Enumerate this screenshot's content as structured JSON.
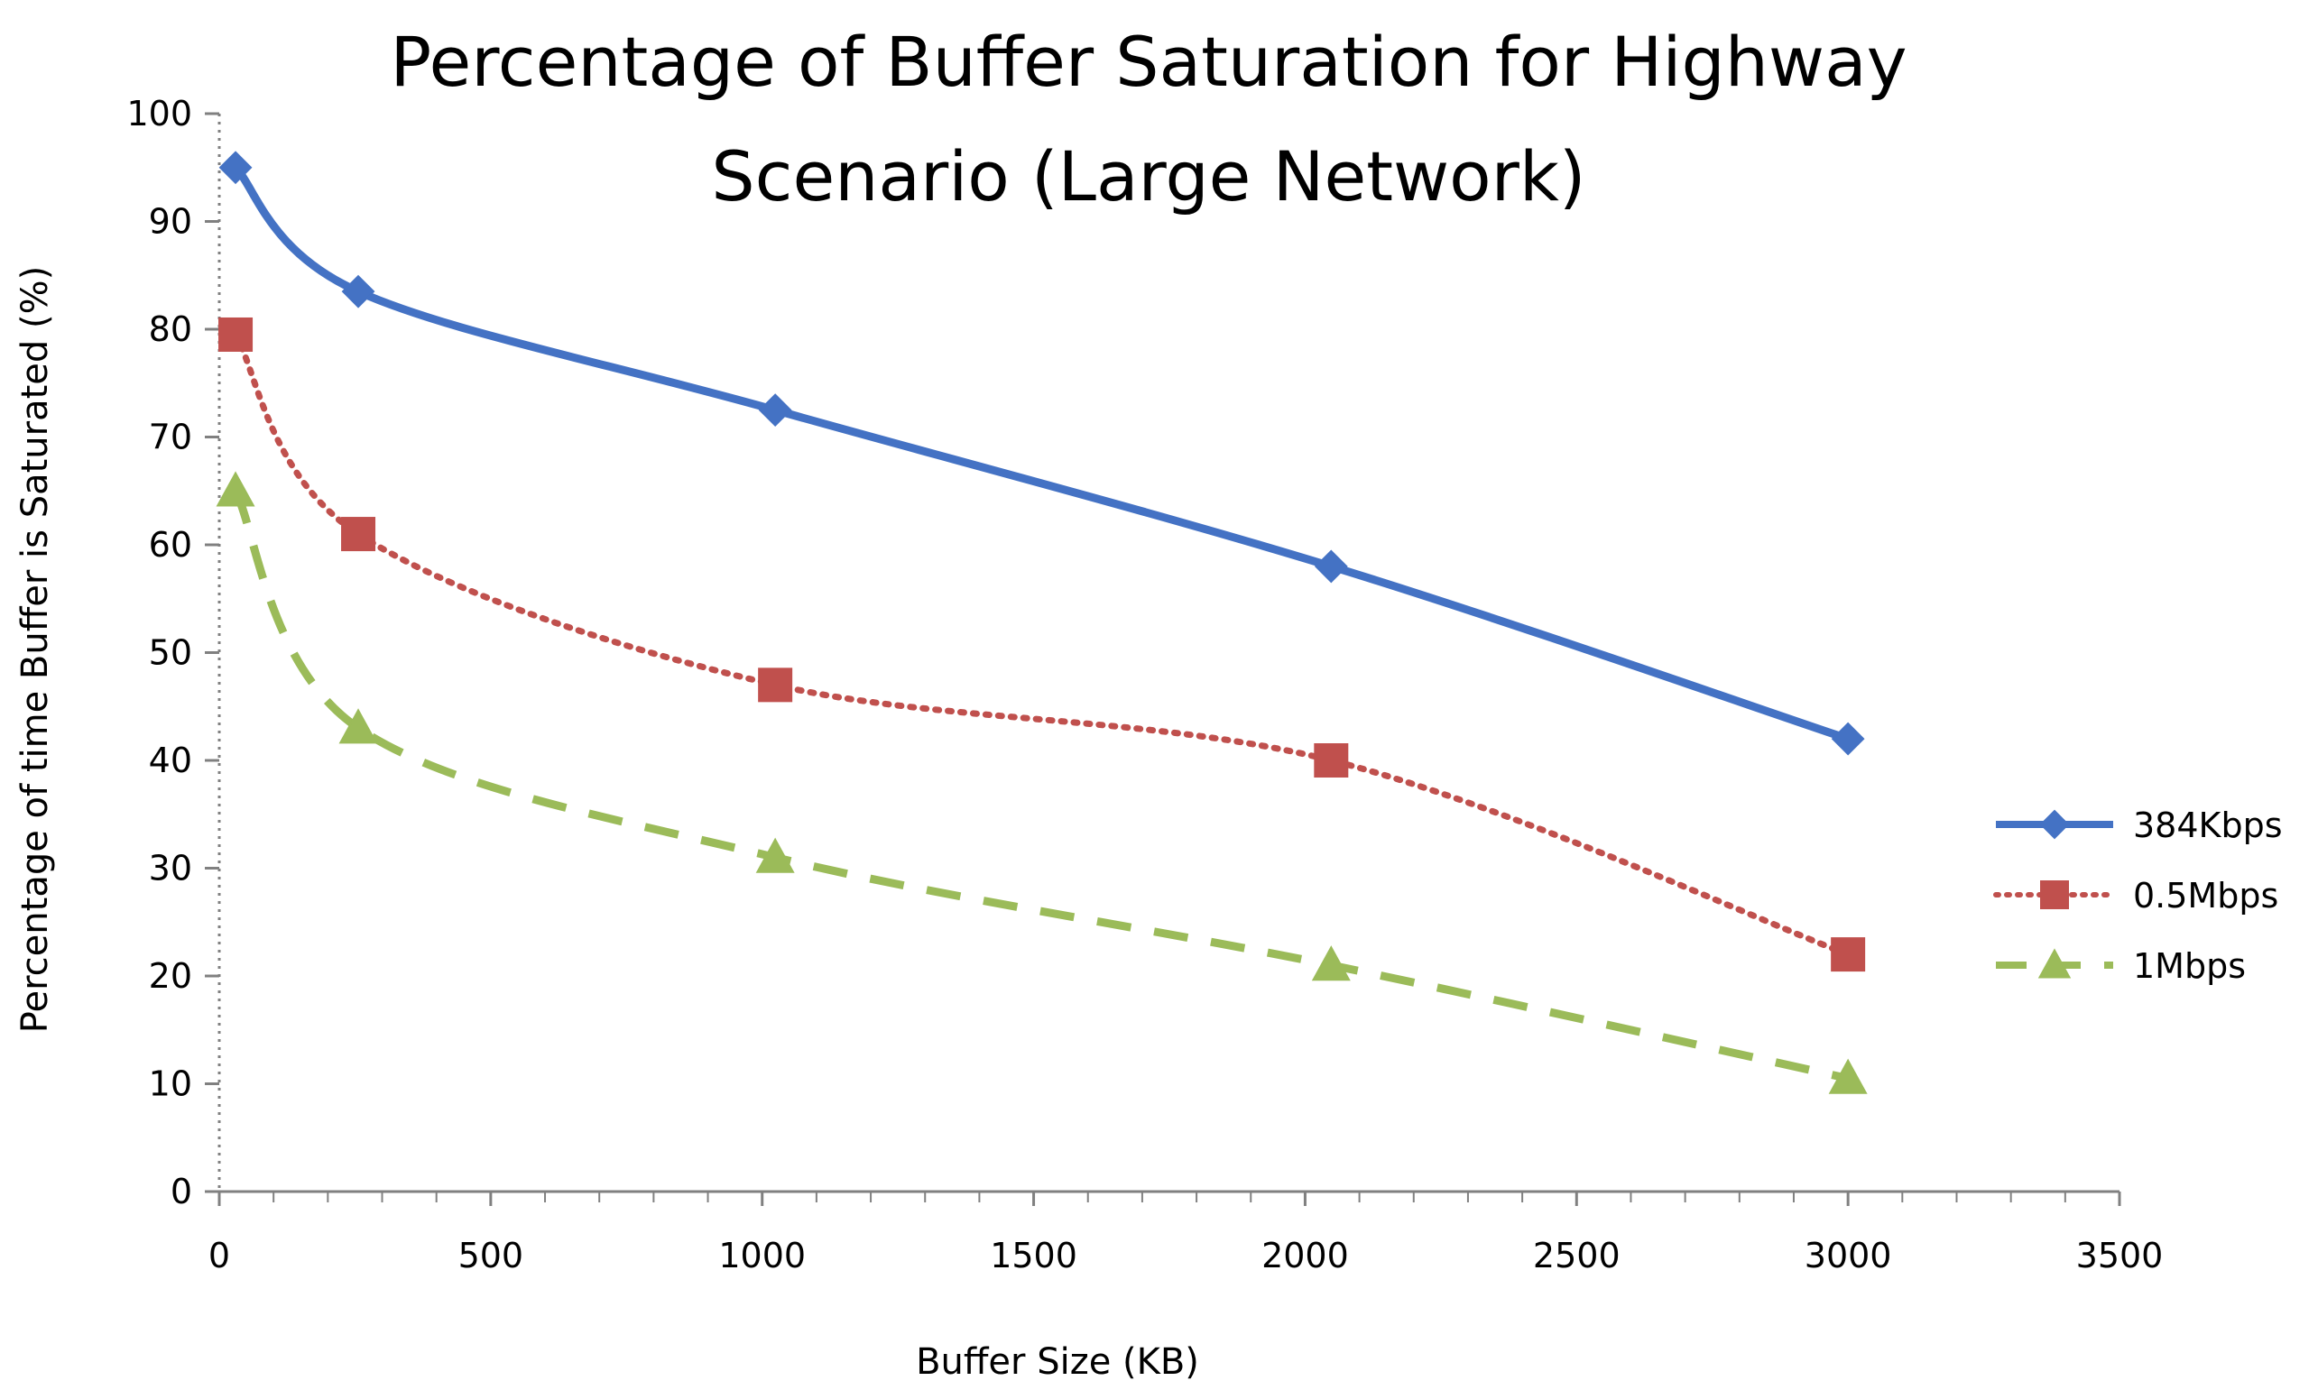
{
  "chart_data": {
    "type": "line",
    "title_lines": [
      "Percentage of Buffer Saturation for Highway",
      "Scenario (Large Network)"
    ],
    "xlabel": "Buffer Size (KB)",
    "ylabel": "Percentage of time Buffer is Saturated (%)",
    "xlim": [
      0,
      3500
    ],
    "ylim": [
      0,
      100
    ],
    "x_ticks": [
      0,
      500,
      1000,
      1500,
      2000,
      2500,
      3000,
      3500
    ],
    "y_ticks": [
      0,
      10,
      20,
      30,
      40,
      50,
      60,
      70,
      80,
      90,
      100
    ],
    "x_minor_step": 100,
    "grid": false,
    "legend_position": "right",
    "series": [
      {
        "name": "384Kbps",
        "color": "#4472C4",
        "marker": "diamond",
        "line_style": "solid",
        "x": [
          30,
          256,
          1024,
          2048,
          3000
        ],
        "y": [
          95,
          83.5,
          72.5,
          58,
          42
        ]
      },
      {
        "name": "0.5Mbps",
        "color": "#C0504D",
        "marker": "square",
        "line_style": "dotted",
        "x": [
          30,
          256,
          1024,
          2048,
          3000
        ],
        "y": [
          79.5,
          61,
          47,
          40,
          22
        ]
      },
      {
        "name": "1Mbps",
        "color": "#9BBB59",
        "marker": "triangle",
        "line_style": "dashed",
        "x": [
          30,
          256,
          1024,
          2048,
          3000
        ],
        "y": [
          65,
          43,
          31,
          21,
          10.5
        ]
      }
    ]
  }
}
